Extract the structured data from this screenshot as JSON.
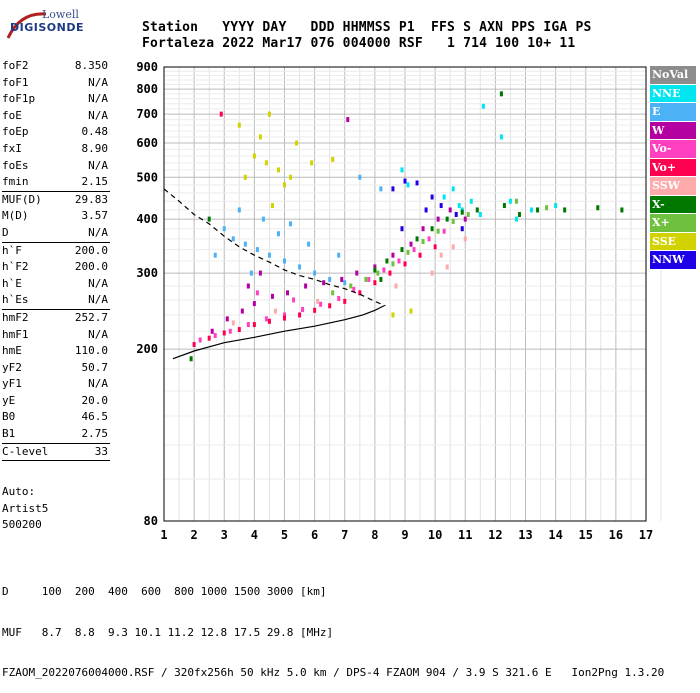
{
  "logo": {
    "line1": "Lowell",
    "line2": "DIGISONDE"
  },
  "header": {
    "line1": "Station   YYYY DAY   DDD HHMMSS P1  FFS S AXN PPS IGA PS",
    "line2": "Fortaleza 2022 Mar17 076 004000 RSF   1 714 100 10+ 11"
  },
  "params": [
    [
      {
        "name": "foF2",
        "value": "8.350"
      },
      {
        "name": "foF1",
        "value": "N/A"
      },
      {
        "name": "foF1p",
        "value": "N/A"
      },
      {
        "name": "foE",
        "value": "N/A"
      },
      {
        "name": "foEp",
        "value": "0.48"
      },
      {
        "name": "fxI",
        "value": "8.90"
      },
      {
        "name": "foEs",
        "value": "N/A"
      },
      {
        "name": "fmin",
        "value": "2.15"
      }
    ],
    [
      {
        "name": "MUF(D)",
        "value": "29.83"
      },
      {
        "name": "M(D)",
        "value": "3.57"
      },
      {
        "name": "D",
        "value": "N/A"
      }
    ],
    [
      {
        "name": "h`F",
        "value": "200.0"
      },
      {
        "name": "h`F2",
        "value": "200.0"
      },
      {
        "name": "h`E",
        "value": "N/A"
      },
      {
        "name": "h`Es",
        "value": "N/A"
      }
    ],
    [
      {
        "name": "hmF2",
        "value": "252.7"
      },
      {
        "name": "hmF1",
        "value": "N/A"
      },
      {
        "name": "hmE",
        "value": "110.0"
      },
      {
        "name": "yF2",
        "value": "50.7"
      },
      {
        "name": "yF1",
        "value": "N/A"
      },
      {
        "name": "yE",
        "value": "20.0"
      },
      {
        "name": "B0",
        "value": "46.5"
      },
      {
        "name": "B1",
        "value": "2.75"
      }
    ],
    [
      {
        "name": "C-level",
        "value": "33"
      }
    ]
  ],
  "auto": {
    "line1": "Auto:",
    "line2": "Artist5",
    "line3": "500200"
  },
  "legend": [
    {
      "label": "NoVal",
      "color": "#8c8c8c"
    },
    {
      "label": "NNE",
      "color": "#00e6f0"
    },
    {
      "label": "E",
      "color": "#4db2f5"
    },
    {
      "label": "W",
      "color": "#b400a0"
    },
    {
      "label": "Vo-",
      "color": "#ff40c0"
    },
    {
      "label": "Vo+",
      "color": "#ff0050"
    },
    {
      "label": "SSW",
      "color": "#ffaaaa"
    },
    {
      "label": "X-",
      "color": "#007800"
    },
    {
      "label": "X+",
      "color": "#70c040"
    },
    {
      "label": "SSE",
      "color": "#d2d200"
    },
    {
      "label": "NNW",
      "color": "#1e00e6"
    }
  ],
  "footer": {
    "line1": "D     100  200  400  600  800 1000 1500 3000 [km]",
    "line2": "MUF   8.7  8.8  9.3 10.1 11.2 12.8 17.5 29.8 [MHz]",
    "line3": "FZAOM_2022076004000.RSF / 320fx256h 50 kHz 5.0 km / DPS-4 FZAOM 904 / 3.9 S 321.6 E   Ion2Png 1.3.20"
  },
  "chart_data": {
    "type": "scatter",
    "title": "",
    "xlabel": "",
    "ylabel": "",
    "xlim": [
      1,
      17
    ],
    "ylim": [
      80,
      900
    ],
    "x_ticks": [
      1,
      2,
      3,
      4,
      5,
      6,
      7,
      8,
      9,
      10,
      11,
      12,
      13,
      14,
      15,
      16,
      17
    ],
    "y_ticks": [
      80,
      200,
      300,
      400,
      500,
      600,
      700,
      800,
      900
    ],
    "y_scale": "log",
    "grid": true,
    "series": [
      {
        "name": "NNE",
        "color": "#00e6f0",
        "points": [
          [
            10.3,
            450
          ],
          [
            10.6,
            470
          ],
          [
            10.8,
            430
          ],
          [
            11.2,
            440
          ],
          [
            11.5,
            410
          ],
          [
            12.5,
            440
          ],
          [
            13.2,
            420
          ],
          [
            14.0,
            430
          ],
          [
            9.1,
            480
          ],
          [
            8.9,
            520
          ],
          [
            10.9,
            420
          ],
          [
            12.7,
            400
          ],
          [
            11.6,
            730
          ],
          [
            12.2,
            620
          ]
        ]
      },
      {
        "name": "E",
        "color": "#4db2f5",
        "points": [
          [
            3.0,
            380
          ],
          [
            3.3,
            360
          ],
          [
            3.7,
            350
          ],
          [
            4.1,
            340
          ],
          [
            4.5,
            330
          ],
          [
            5.0,
            320
          ],
          [
            5.5,
            310
          ],
          [
            6.0,
            300
          ],
          [
            6.5,
            290
          ],
          [
            7.0,
            285
          ],
          [
            4.3,
            400
          ],
          [
            5.2,
            390
          ],
          [
            2.7,
            330
          ],
          [
            3.5,
            420
          ],
          [
            4.8,
            370
          ],
          [
            6.8,
            330
          ],
          [
            7.5,
            500
          ],
          [
            8.2,
            470
          ],
          [
            3.9,
            300
          ],
          [
            5.8,
            350
          ]
        ]
      },
      {
        "name": "W",
        "color": "#b400a0",
        "points": [
          [
            2.6,
            220
          ],
          [
            3.1,
            235
          ],
          [
            3.6,
            245
          ],
          [
            4.0,
            255
          ],
          [
            4.6,
            265
          ],
          [
            5.1,
            270
          ],
          [
            5.7,
            280
          ],
          [
            6.3,
            285
          ],
          [
            6.9,
            290
          ],
          [
            7.4,
            300
          ],
          [
            8.0,
            310
          ],
          [
            8.6,
            330
          ],
          [
            9.2,
            350
          ],
          [
            9.6,
            380
          ],
          [
            10.1,
            400
          ],
          [
            3.8,
            280
          ],
          [
            4.2,
            300
          ],
          [
            10.5,
            420
          ],
          [
            11.0,
            400
          ],
          [
            7.1,
            680
          ]
        ]
      },
      {
        "name": "Vo-",
        "color": "#ff40c0",
        "points": [
          [
            2.2,
            210
          ],
          [
            2.7,
            215
          ],
          [
            3.2,
            220
          ],
          [
            3.8,
            228
          ],
          [
            4.4,
            235
          ],
          [
            5.0,
            240
          ],
          [
            5.6,
            247
          ],
          [
            6.2,
            254
          ],
          [
            6.8,
            262
          ],
          [
            7.3,
            275
          ],
          [
            7.8,
            290
          ],
          [
            8.3,
            305
          ],
          [
            8.8,
            320
          ],
          [
            9.3,
            340
          ],
          [
            9.8,
            360
          ],
          [
            10.3,
            375
          ],
          [
            4.1,
            270
          ],
          [
            5.3,
            260
          ]
        ]
      },
      {
        "name": "Vo+",
        "color": "#ff0050",
        "points": [
          [
            2.0,
            205
          ],
          [
            2.5,
            212
          ],
          [
            3.0,
            218
          ],
          [
            3.5,
            222
          ],
          [
            4.0,
            228
          ],
          [
            4.5,
            232
          ],
          [
            5.0,
            236
          ],
          [
            5.5,
            240
          ],
          [
            6.0,
            246
          ],
          [
            6.5,
            252
          ],
          [
            7.0,
            258
          ],
          [
            7.5,
            270
          ],
          [
            8.0,
            285
          ],
          [
            8.5,
            300
          ],
          [
            9.0,
            315
          ],
          [
            9.5,
            330
          ],
          [
            10.0,
            345
          ],
          [
            2.9,
            700
          ]
        ]
      },
      {
        "name": "SSW",
        "color": "#ffaaaa",
        "points": [
          [
            10.2,
            330
          ],
          [
            10.6,
            345
          ],
          [
            11.0,
            360
          ],
          [
            10.4,
            310
          ],
          [
            9.9,
            300
          ],
          [
            3.3,
            230
          ],
          [
            4.7,
            245
          ],
          [
            6.1,
            258
          ],
          [
            8.7,
            280
          ]
        ]
      },
      {
        "name": "X-",
        "color": "#007800",
        "points": [
          [
            2.5,
            400
          ],
          [
            8.0,
            305
          ],
          [
            8.4,
            320
          ],
          [
            8.9,
            340
          ],
          [
            9.4,
            360
          ],
          [
            9.9,
            380
          ],
          [
            10.4,
            400
          ],
          [
            10.9,
            415
          ],
          [
            11.4,
            420
          ],
          [
            12.3,
            430
          ],
          [
            12.8,
            410
          ],
          [
            13.4,
            420
          ],
          [
            14.3,
            420
          ],
          [
            15.4,
            425
          ],
          [
            1.9,
            190
          ],
          [
            12.2,
            780
          ],
          [
            8.2,
            290
          ],
          [
            16.2,
            420
          ]
        ]
      },
      {
        "name": "X+",
        "color": "#70c040",
        "points": [
          [
            7.2,
            280
          ],
          [
            7.7,
            290
          ],
          [
            8.1,
            300
          ],
          [
            8.6,
            315
          ],
          [
            9.1,
            335
          ],
          [
            9.6,
            355
          ],
          [
            10.1,
            375
          ],
          [
            10.6,
            395
          ],
          [
            11.1,
            410
          ],
          [
            12.7,
            440
          ],
          [
            13.7,
            425
          ],
          [
            6.6,
            270
          ]
        ]
      },
      {
        "name": "SSE",
        "color": "#d2d200",
        "points": [
          [
            4.0,
            560
          ],
          [
            4.4,
            540
          ],
          [
            4.8,
            520
          ],
          [
            3.7,
            500
          ],
          [
            4.2,
            620
          ],
          [
            4.5,
            700
          ],
          [
            5.0,
            480
          ],
          [
            5.4,
            600
          ],
          [
            5.9,
            540
          ],
          [
            6.6,
            550
          ],
          [
            4.6,
            430
          ],
          [
            5.2,
            500
          ],
          [
            8.6,
            240
          ],
          [
            9.2,
            245
          ],
          [
            3.5,
            660
          ]
        ]
      },
      {
        "name": "NNW",
        "color": "#1e00e6",
        "points": [
          [
            8.6,
            470
          ],
          [
            9.0,
            490
          ],
          [
            9.4,
            485
          ],
          [
            9.9,
            450
          ],
          [
            10.2,
            430
          ],
          [
            10.7,
            410
          ],
          [
            9.7,
            420
          ],
          [
            8.9,
            380
          ],
          [
            10.9,
            380
          ]
        ]
      }
    ],
    "curves": [
      {
        "name": "profile",
        "points": [
          [
            1.3,
            190
          ],
          [
            2.0,
            198
          ],
          [
            3.0,
            207
          ],
          [
            4.0,
            213
          ],
          [
            5.0,
            220
          ],
          [
            6.0,
            226
          ],
          [
            7.0,
            234
          ],
          [
            7.6,
            240
          ],
          [
            8.0,
            246
          ],
          [
            8.3,
            252
          ]
        ]
      },
      {
        "name": "model",
        "style": "dashed",
        "points": [
          [
            1.0,
            470
          ],
          [
            1.5,
            440
          ],
          [
            2.0,
            410
          ],
          [
            2.5,
            390
          ],
          [
            3.0,
            365
          ],
          [
            3.5,
            345
          ],
          [
            4.0,
            330
          ],
          [
            4.5,
            318
          ],
          [
            5.0,
            305
          ],
          [
            5.5,
            296
          ],
          [
            6.0,
            290
          ],
          [
            6.5,
            282
          ],
          [
            7.0,
            276
          ],
          [
            7.5,
            268
          ],
          [
            8.0,
            258
          ],
          [
            8.35,
            252
          ]
        ]
      }
    ]
  }
}
